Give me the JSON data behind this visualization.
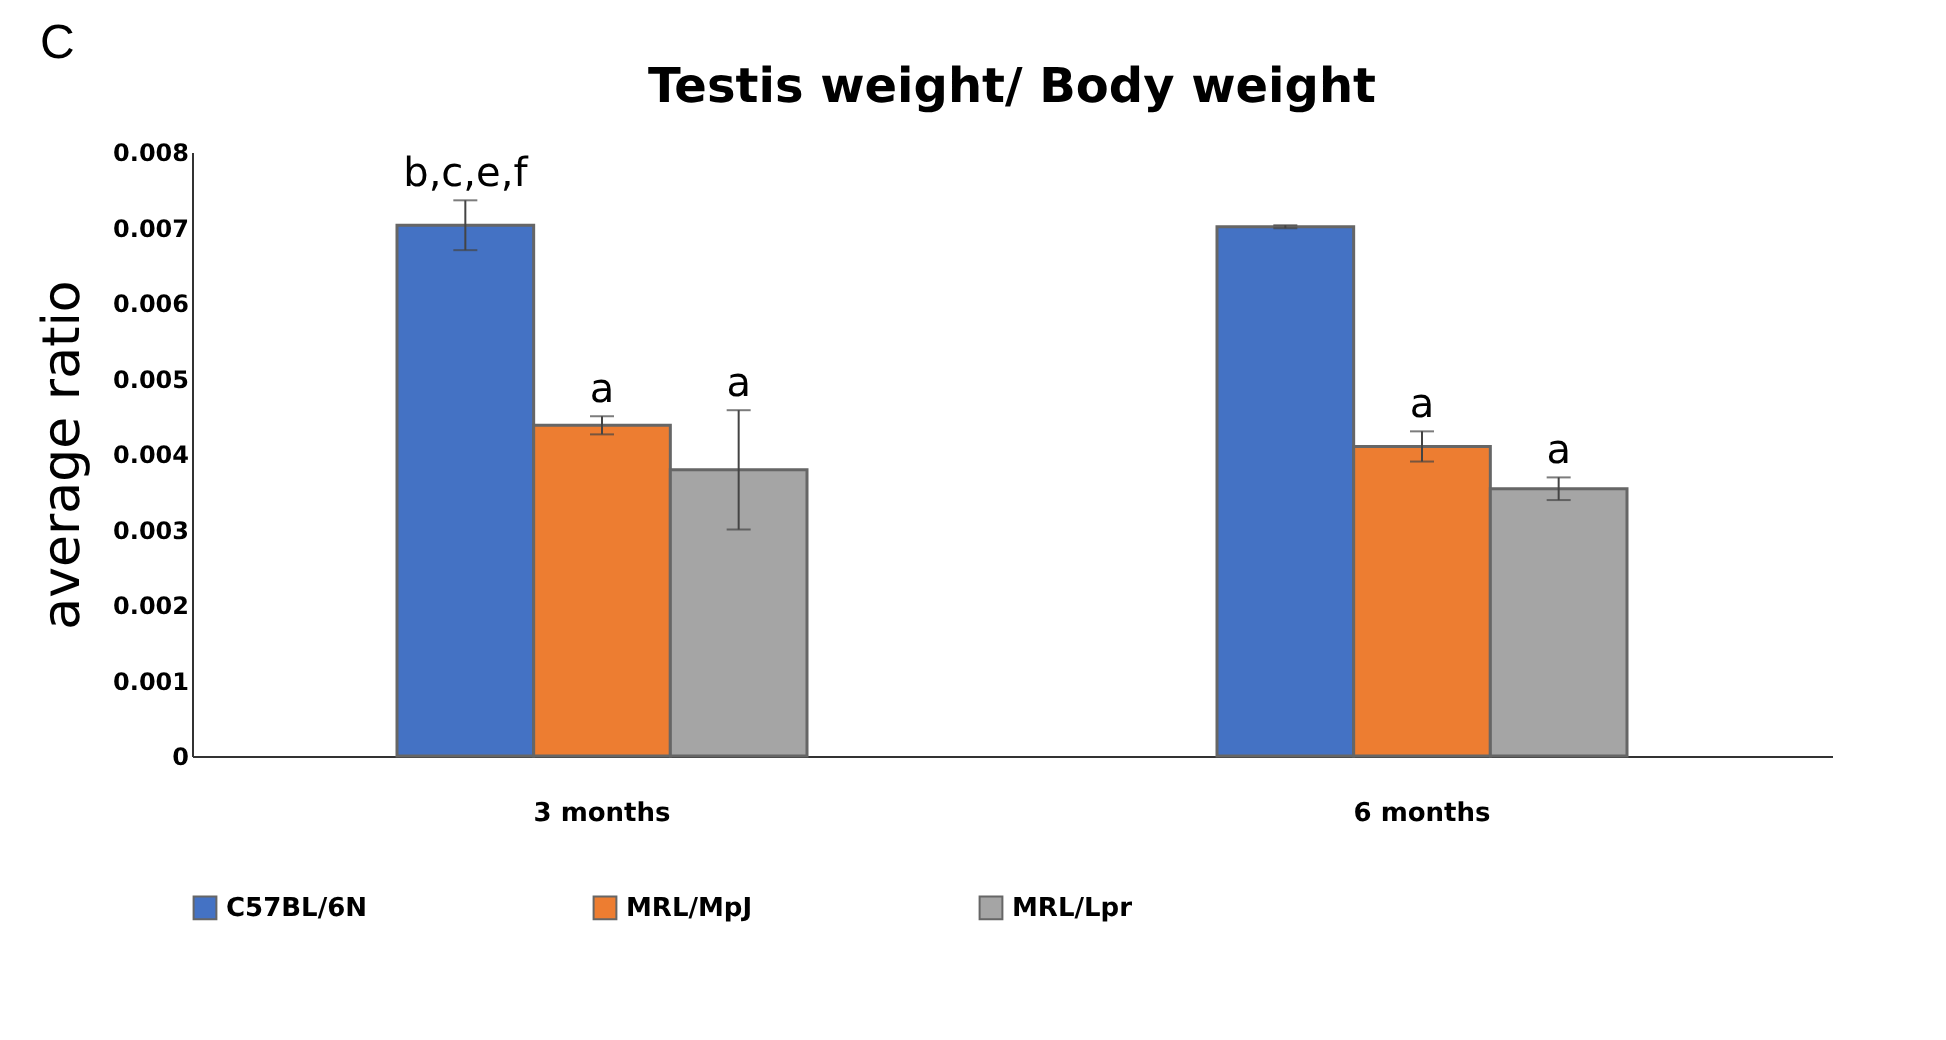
{
  "chart_data": {
    "type": "bar",
    "title": "Testis weight/ Body weight",
    "ylabel": "average ratio",
    "categories": [
      "3 months",
      "6 months"
    ],
    "series": [
      {
        "name": "C57BL/6N",
        "color": "#4472c4",
        "values": [
          0.00703,
          0.00701
        ],
        "errors": [
          0.00033,
          2e-05
        ],
        "value_labels": [
          "b,c,e,f",
          null
        ]
      },
      {
        "name": "MRL/MpJ",
        "color": "#ed7d31",
        "values": [
          0.00438,
          0.0041
        ],
        "errors": [
          0.00012,
          0.0002
        ],
        "value_labels": [
          "a",
          "a"
        ]
      },
      {
        "name": "MRL/Lpr",
        "color": "#a5a5a5",
        "values": [
          0.00379,
          0.00354
        ],
        "errors": [
          0.00079,
          0.00015
        ],
        "value_labels": [
          "a",
          "a"
        ]
      }
    ],
    "ylim": [
      0,
      0.008
    ],
    "yticks": [
      0,
      0.001,
      0.002,
      0.003,
      0.004,
      0.005,
      0.006,
      0.007,
      0.008
    ],
    "grid": false,
    "legend": "bottom",
    "annotations": [
      "C"
    ]
  }
}
